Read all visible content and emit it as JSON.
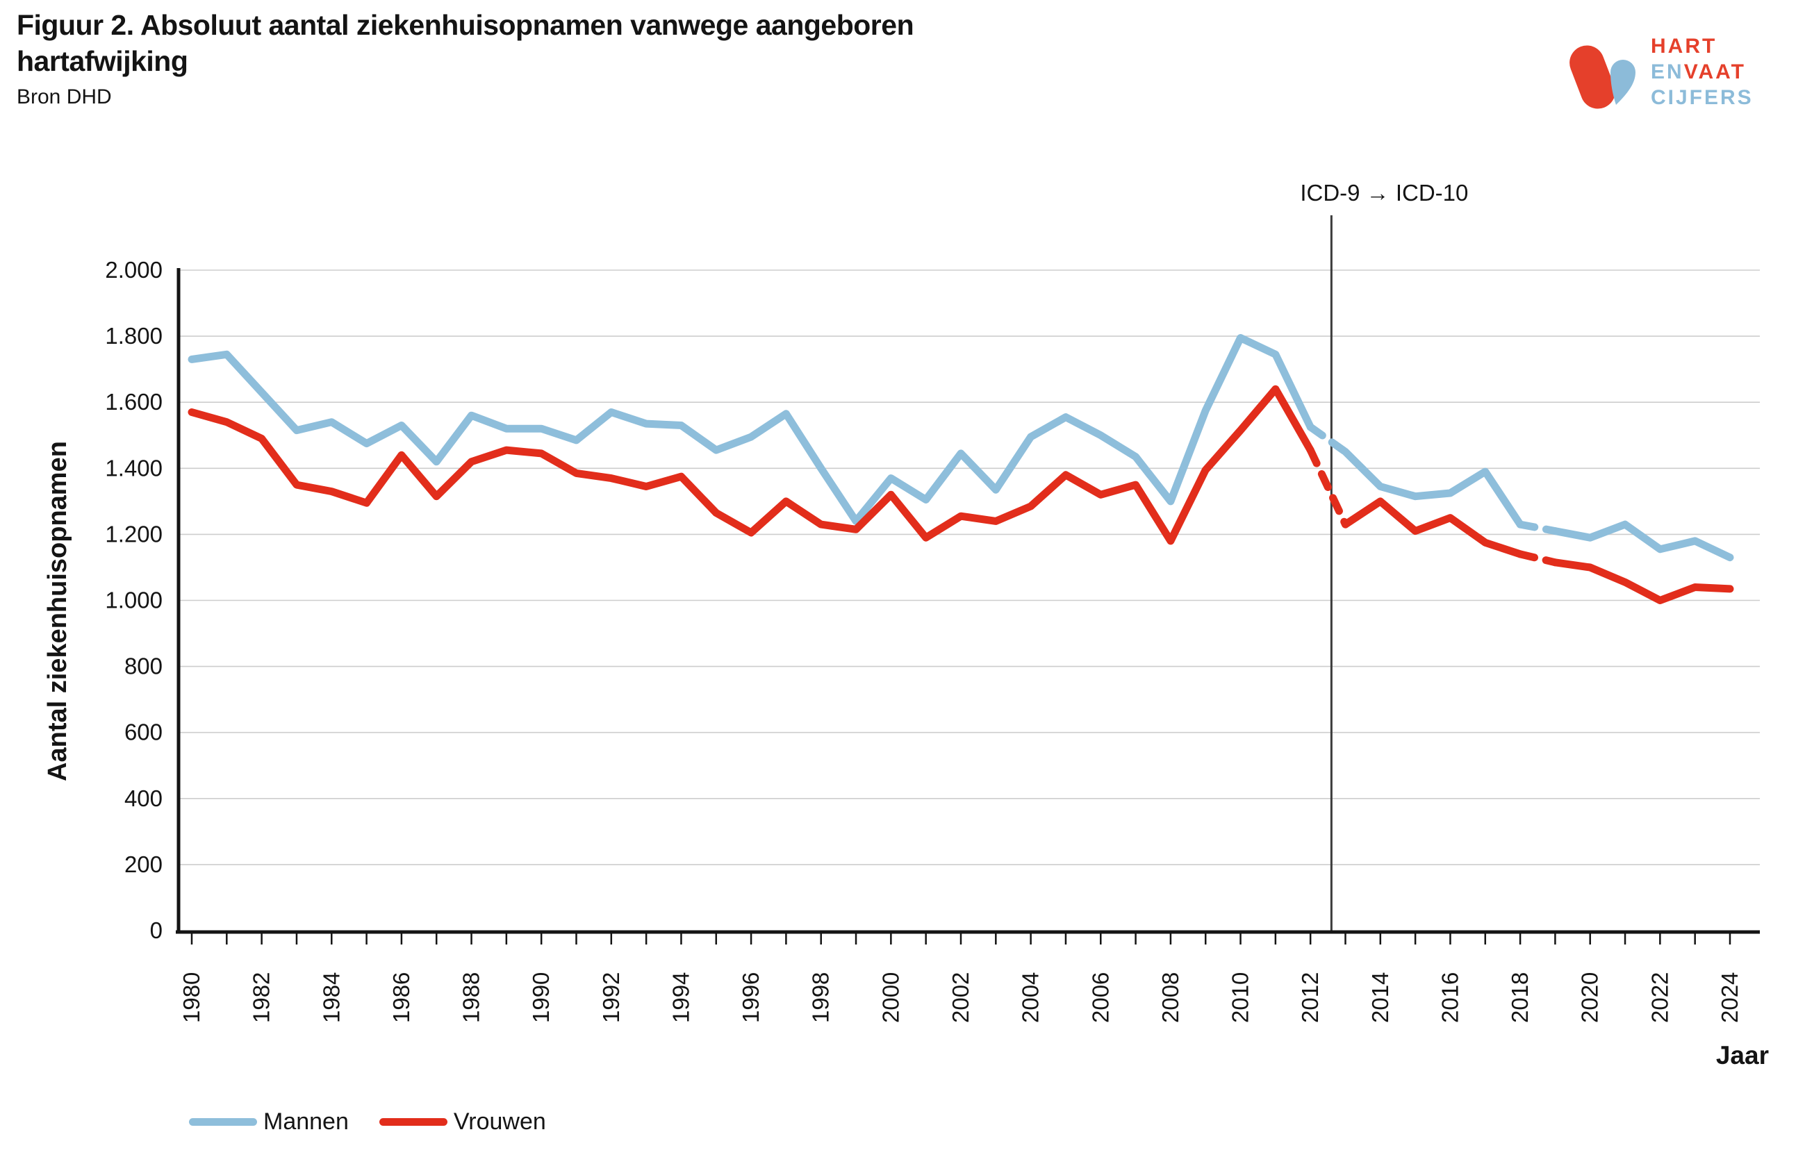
{
  "header": {
    "title_line1": "Figuur 2. Absoluut aantal ziekenhuisopnamen vanwege aangeboren",
    "title_line2": "hartafwijking",
    "source": "Bron DHD"
  },
  "logo": {
    "word1": "HART",
    "word2a": "EN",
    "word2b": "VAAT",
    "word3": "CIJFERS",
    "red": "#E5402B",
    "blue": "#8CBBD9"
  },
  "legend": [
    {
      "label": "Mannen",
      "color": "#8EBEDB"
    },
    {
      "label": "Vrouwen",
      "color": "#E22D1B"
    }
  ],
  "chart_data": {
    "type": "line",
    "title": "Figuur 2. Absoluut aantal ziekenhuisopnamen vanwege aangeboren hartafwijking",
    "source": "Bron DHD",
    "xlabel": "Jaar",
    "ylabel": "Aantal ziekenhuisopnamen",
    "xlim": [
      1980,
      2024
    ],
    "ylim": [
      0,
      2000
    ],
    "ytick_step": 200,
    "y_ticklabels": [
      "0",
      "200",
      "400",
      "600",
      "800",
      "1.000",
      "1.200",
      "1.400",
      "1.600",
      "1.800",
      "2.000"
    ],
    "x_ticklabel_years": [
      1980,
      1982,
      1984,
      1986,
      1988,
      1990,
      1992,
      1994,
      1996,
      1998,
      2000,
      2002,
      2004,
      2006,
      2008,
      2010,
      2012,
      2014,
      2016,
      2018,
      2020,
      2022,
      2024
    ],
    "grid": true,
    "legend_position": "bottom-left",
    "number_format": "nl",
    "x": [
      1980,
      1981,
      1982,
      1983,
      1984,
      1985,
      1986,
      1987,
      1988,
      1989,
      1990,
      1991,
      1992,
      1993,
      1994,
      1995,
      1996,
      1997,
      1998,
      1999,
      2000,
      2001,
      2002,
      2003,
      2004,
      2005,
      2006,
      2007,
      2008,
      2009,
      2010,
      2011,
      2012,
      2013,
      2014,
      2015,
      2016,
      2017,
      2018,
      2019,
      2020,
      2021,
      2022,
      2023,
      2024
    ],
    "series": [
      {
        "name": "Mannen",
        "color": "#8EBEDB",
        "values": [
          1730,
          1745,
          1630,
          1515,
          1540,
          1475,
          1530,
          1420,
          1560,
          1520,
          1520,
          1485,
          1570,
          1535,
          1530,
          1455,
          1495,
          1565,
          1400,
          1240,
          1370,
          1305,
          1445,
          1335,
          1495,
          1555,
          1500,
          1435,
          1300,
          1575,
          1795,
          1745,
          1525,
          1450,
          1345,
          1315,
          1325,
          1390,
          1230,
          1210,
          1190,
          1230,
          1155,
          1180,
          1130
        ]
      },
      {
        "name": "Vrouwen",
        "color": "#E22D1B",
        "values": [
          1570,
          1540,
          1490,
          1350,
          1330,
          1295,
          1440,
          1315,
          1420,
          1455,
          1445,
          1385,
          1370,
          1345,
          1375,
          1265,
          1205,
          1300,
          1230,
          1215,
          1320,
          1190,
          1255,
          1240,
          1285,
          1380,
          1320,
          1350,
          1180,
          1395,
          1515,
          1640,
          1455,
          1230,
          1300,
          1210,
          1250,
          1175,
          1140,
          1115,
          1100,
          1055,
          1000,
          1040,
          1035
        ]
      }
    ],
    "dashed_segments": [
      [
        2012,
        2013
      ],
      [
        2018,
        2019
      ]
    ],
    "vline": {
      "x_year": 2012.6,
      "label": "ICD-9 → ICD-10"
    }
  }
}
